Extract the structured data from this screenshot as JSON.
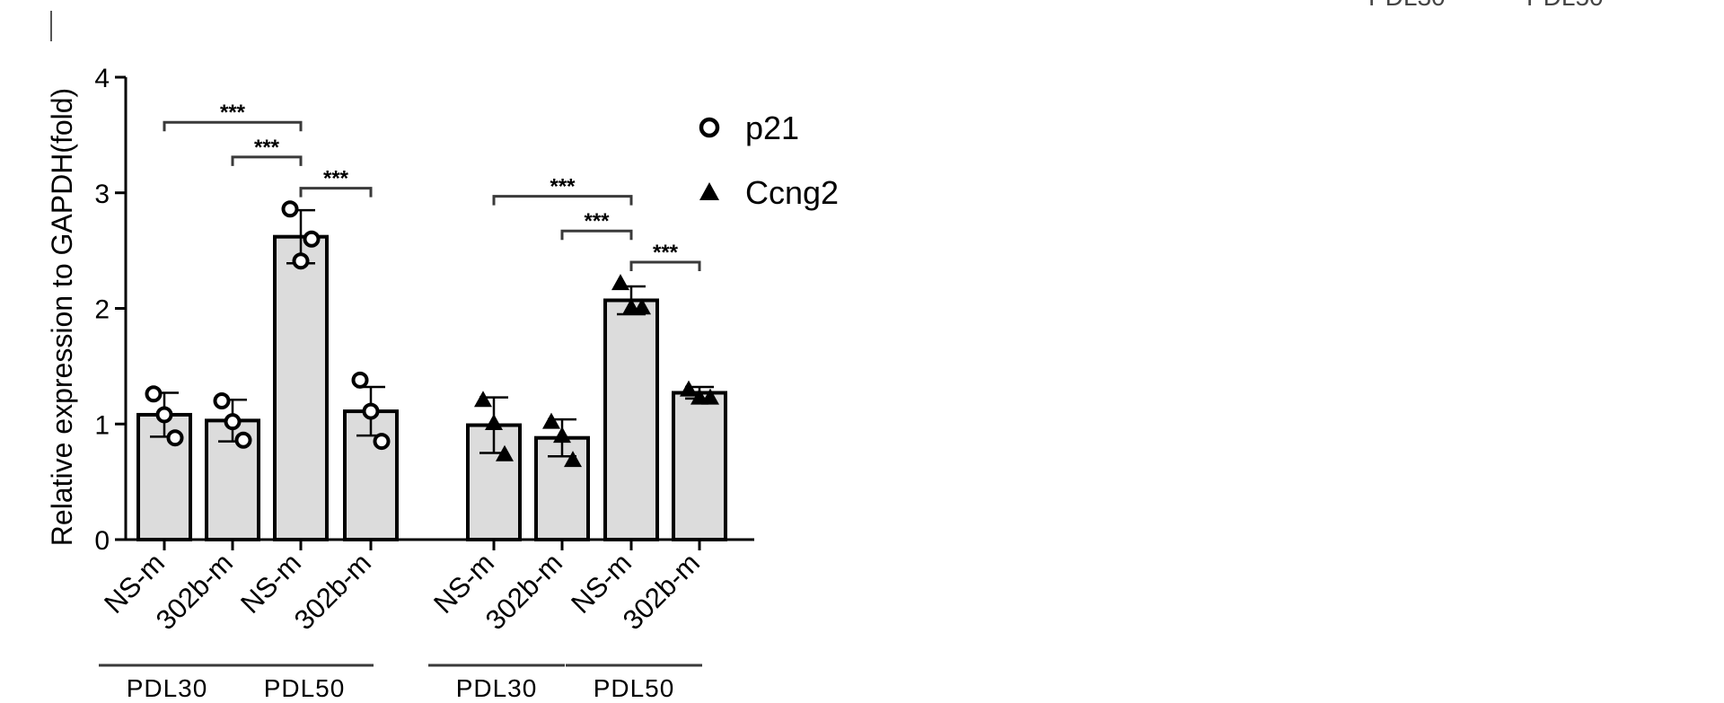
{
  "chart_data": {
    "type": "bar",
    "title": "",
    "xlabel": "",
    "ylabel": "Relative expression to GAPDH(fold)",
    "ylim": [
      0,
      4
    ],
    "yticks": [
      "0",
      "1",
      "2",
      "3",
      "4"
    ],
    "legend_placement": "top-right",
    "significance_label": "***",
    "cropped_top_labels": [
      "PDL30",
      "PDL50"
    ],
    "panels": [
      {
        "series_name": "p21",
        "marker": "open-circle",
        "groups": [
          "PDL30",
          "PDL50"
        ],
        "categories": [
          "NS-m",
          "302b-m",
          "NS-m",
          "302b-m"
        ],
        "values": [
          1.08,
          1.03,
          2.62,
          1.11
        ],
        "sd": [
          0.19,
          0.18,
          0.23,
          0.21
        ],
        "points": [
          [
            1.26,
            1.08,
            0.88
          ],
          [
            1.2,
            1.02,
            0.86
          ],
          [
            2.86,
            2.41,
            2.6
          ],
          [
            1.38,
            1.11,
            0.85
          ]
        ],
        "comparisons": [
          [
            0,
            2,
            "***"
          ],
          [
            1,
            2,
            "***"
          ],
          [
            2,
            3,
            "***"
          ]
        ]
      },
      {
        "series_name": "Ccng2",
        "marker": "filled-triangle",
        "groups": [
          "PDL30",
          "PDL50"
        ],
        "categories": [
          "NS-m",
          "302b-m",
          "NS-m",
          "302b-m"
        ],
        "values": [
          0.99,
          0.88,
          2.07,
          1.27
        ],
        "sd": [
          0.24,
          0.16,
          0.12,
          0.05
        ],
        "points": [
          [
            1.21,
            1.01,
            0.74
          ],
          [
            1.02,
            0.9,
            0.69
          ],
          [
            2.22,
            2.01,
            2.01
          ],
          [
            1.3,
            1.23,
            1.23
          ]
        ],
        "comparisons": [
          [
            0,
            2,
            "***"
          ],
          [
            1,
            2,
            "***"
          ],
          [
            2,
            3,
            "***"
          ]
        ]
      }
    ],
    "legend": [
      {
        "name": "p21",
        "marker": "open-circle"
      },
      {
        "name": "Ccng2",
        "marker": "filled-triangle"
      }
    ]
  }
}
